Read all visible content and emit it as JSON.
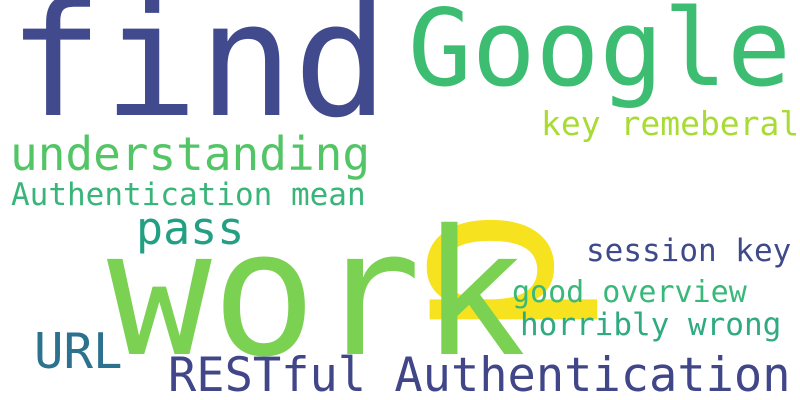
{
  "words": [
    {
      "text": "find",
      "color": "#424a8e"
    },
    {
      "text": "Google",
      "color": "#3dbd72"
    },
    {
      "text": "p",
      "color": "#f7e21f"
    },
    {
      "text": "understanding",
      "color": "#54c566"
    },
    {
      "text": "key remeberal",
      "color": "#a8db34"
    },
    {
      "text": "Authentication mean",
      "color": "#3ab579"
    },
    {
      "text": "pass",
      "color": "#23a083"
    },
    {
      "text": "work",
      "color": "#7bd151"
    },
    {
      "text": "session key",
      "color": "#3e4a89"
    },
    {
      "text": "good overview",
      "color": "#39b87a"
    },
    {
      "text": "horribly wrong",
      "color": "#30aa80"
    },
    {
      "text": "URL",
      "color": "#2c718e"
    },
    {
      "text": "RESTful Authentication",
      "color": "#404688"
    }
  ]
}
